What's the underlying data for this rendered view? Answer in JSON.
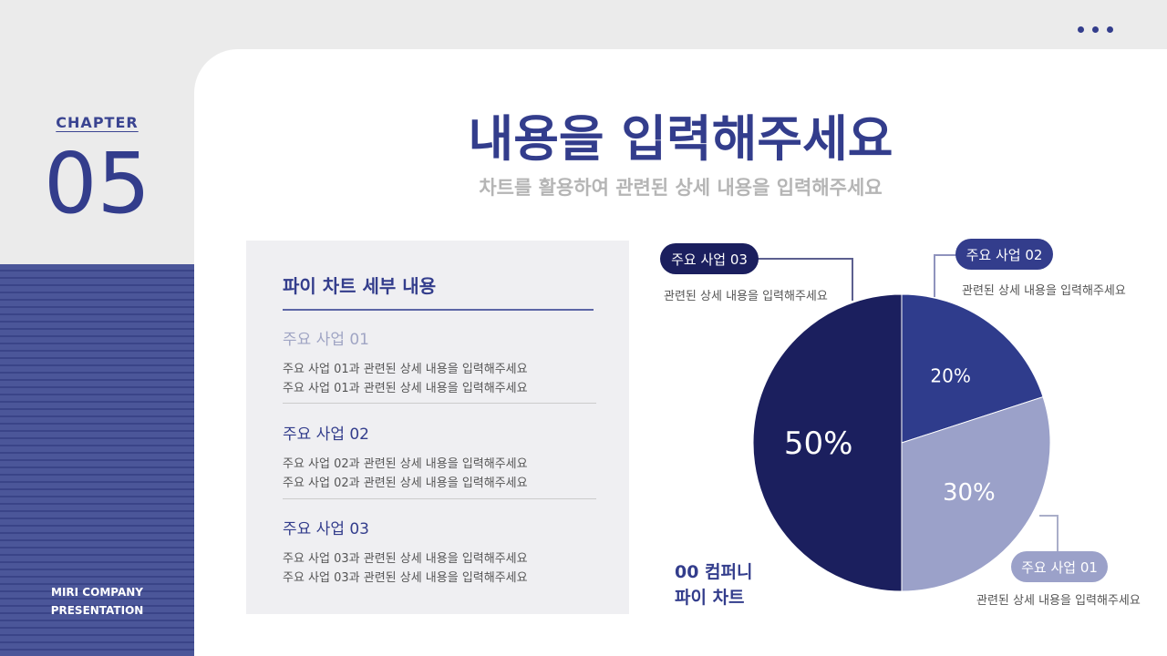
{
  "header": {
    "chapter_label": "CHAPTER",
    "chapter_number": "05",
    "title": "내용을 입력해주세요",
    "subtitle": "차트를 활용하여 관련된 상세 내용을 입력해주세요"
  },
  "sidebar": {
    "company": "MIRI COMPANY",
    "presentation": "PRESENTATION"
  },
  "panel": {
    "title": "파이 차트 세부 내용",
    "items": [
      {
        "heading": "주요 사업 01",
        "lines": [
          "주요 사업 01과 관련된 상세 내용을 입력해주세요",
          "주요 사업 01과 관련된 상세 내용을 입력해주세요"
        ],
        "color": "#a0a5c4"
      },
      {
        "heading": "주요 사업 02",
        "lines": [
          "주요 사업 02과 관련된 상세 내용을 입력해주세요",
          "주요 사업 02과 관련된 상세 내용을 입력해주세요"
        ],
        "color": "#333d8c"
      },
      {
        "heading": "주요 사업 03",
        "lines": [
          "주요 사업 03과 관련된 상세 내용을 입력해주세요",
          "주요 사업 03과 관련된 상세 내용을 입력해주세요"
        ],
        "color": "#333d8c"
      }
    ]
  },
  "chart_caption": {
    "line1": "00 컴퍼니",
    "line2": "파이 차트"
  },
  "chart_data": {
    "type": "pie",
    "categories": [
      "주요 사업 02",
      "주요 사업 01",
      "주요 사업 03"
    ],
    "values": [
      20,
      30,
      50
    ],
    "labels": [
      "20%",
      "30%",
      "50%"
    ],
    "colors": [
      "#2f3c8c",
      "#9ba1c9",
      "#1b1f5e"
    ],
    "start": "top",
    "direction": "clockwise",
    "callouts": [
      {
        "label": "주요 사업 03",
        "desc": "관련된 상세 내용을 입력해주세요"
      },
      {
        "label": "주요 사업 02",
        "desc": "관련된 상세 내용을 입력해주세요"
      },
      {
        "label": "주요 사업 01",
        "desc": "관련된 상세 내용을 입력해주세요"
      }
    ]
  }
}
